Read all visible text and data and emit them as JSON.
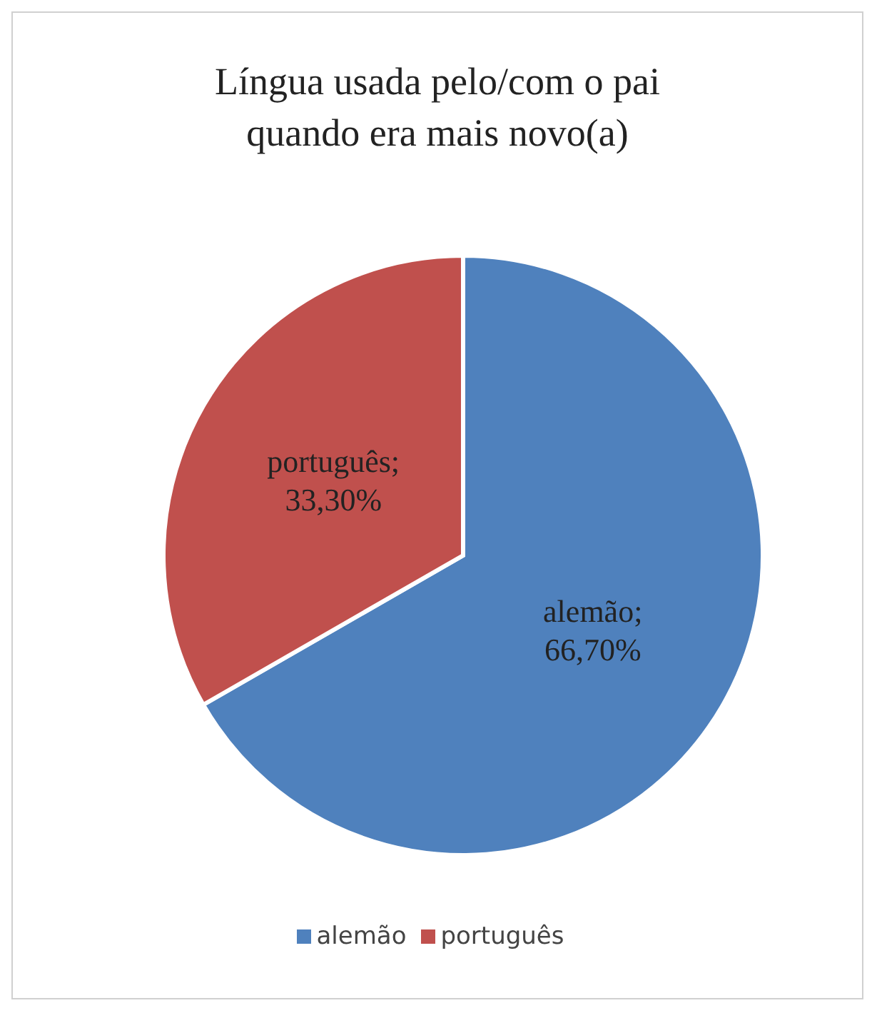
{
  "chart_data": {
    "type": "pie",
    "title": "Língua usada pelo/com o pai quando era mais novo(a)",
    "categories": [
      "alemão",
      "português"
    ],
    "values": [
      66.7,
      33.3
    ],
    "colors": [
      "#4f81bd",
      "#c0504d"
    ],
    "value_labels": [
      "alemão; 66,70%",
      "português; 33,30%"
    ],
    "legend": "bottom"
  }
}
